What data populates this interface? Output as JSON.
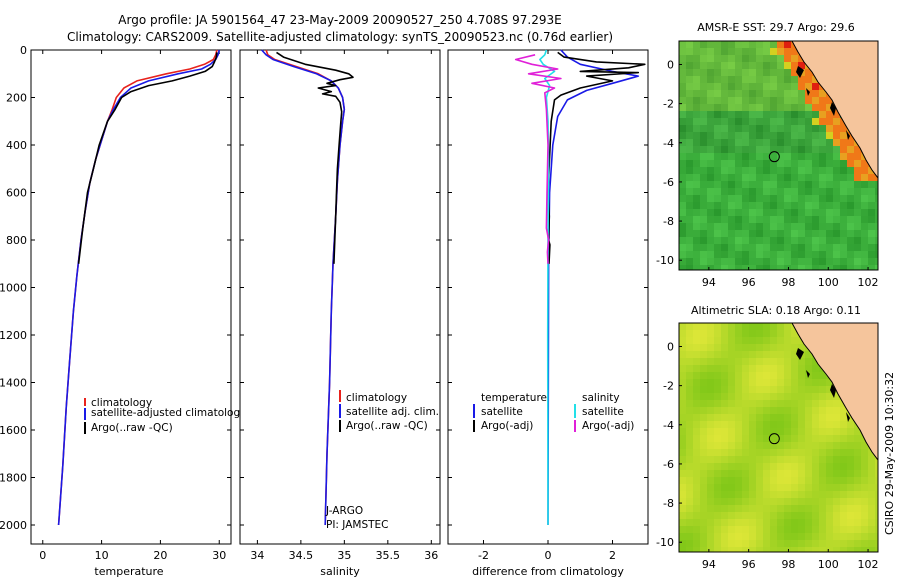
{
  "header": {
    "line1": "Argo profile: JA 5901564_47 23-May-2009 20090527_250 4.708S 97.293E",
    "line2": "Climatology: CARS2009. Satellite-adjusted climatology: synTS_20090523.nc (0.76d earlier)"
  },
  "side_stamp": "CSIRO 29-May-2009 10:30:32",
  "colors": {
    "red": "#e8221c",
    "blue": "#1a1ae6",
    "black": "#000000",
    "cyan": "#22e0e8",
    "magenta": "#e020d8"
  },
  "chart_data": [
    {
      "type": "line",
      "name": "temperature",
      "xlabel": "temperature",
      "ylabel": "",
      "xlim": [
        -2,
        32
      ],
      "ylim": [
        2080,
        0
      ],
      "xticks": [
        "0",
        "10",
        "20",
        "30"
      ],
      "xtick_values": [
        0,
        10,
        20,
        30
      ],
      "yticks": [
        "0",
        "200",
        "400",
        "600",
        "800",
        "1000",
        "1200",
        "1400",
        "1600",
        "1800",
        "2000"
      ],
      "ytick_values": [
        0,
        200,
        400,
        600,
        800,
        1000,
        1200,
        1400,
        1600,
        1800,
        2000
      ],
      "legend": [
        "climatology",
        "satellite-adjusted climatology",
        "Argo(..raw -QC)"
      ],
      "series": [
        {
          "name": "climatology",
          "color": "red",
          "points": [
            [
              29.6,
              0
            ],
            [
              29.4,
              20
            ],
            [
              29,
              40
            ],
            [
              27.5,
              60
            ],
            [
              25,
              80
            ],
            [
              21,
              100
            ],
            [
              16,
              130
            ],
            [
              13.8,
              160
            ],
            [
              12.5,
              200
            ],
            [
              11.8,
              250
            ],
            [
              11,
              300
            ],
            [
              10,
              380
            ],
            [
              9,
              460
            ],
            [
              8,
              560
            ],
            [
              7.2,
              680
            ],
            [
              6.5,
              800
            ],
            [
              5.8,
              950
            ],
            [
              5.2,
              1100
            ],
            [
              4.6,
              1300
            ],
            [
              4,
              1500
            ],
            [
              3.4,
              1750
            ],
            [
              2.7,
              2000
            ]
          ]
        },
        {
          "name": "satellite-adjusted climatology",
          "color": "blue",
          "points": [
            [
              30,
              0
            ],
            [
              29.8,
              20
            ],
            [
              29.4,
              40
            ],
            [
              28.5,
              60
            ],
            [
              27,
              80
            ],
            [
              23,
              100
            ],
            [
              18,
              130
            ],
            [
              15,
              160
            ],
            [
              13.2,
              200
            ],
            [
              12,
              250
            ],
            [
              11,
              300
            ],
            [
              10,
              380
            ],
            [
              9,
              460
            ],
            [
              8,
              560
            ],
            [
              7.2,
              680
            ],
            [
              6.5,
              800
            ],
            [
              5.8,
              950
            ],
            [
              5.2,
              1100
            ],
            [
              4.6,
              1300
            ],
            [
              4,
              1500
            ],
            [
              3.4,
              1750
            ],
            [
              2.7,
              2000
            ]
          ]
        },
        {
          "name": "Argo(..raw -QC)",
          "color": "black",
          "points": [
            [
              29.6,
              10
            ],
            [
              29.5,
              30
            ],
            [
              29.2,
              50
            ],
            [
              28.8,
              70
            ],
            [
              27.6,
              90
            ],
            [
              25,
              110
            ],
            [
              22,
              130
            ],
            [
              18,
              150
            ],
            [
              15,
              175
            ],
            [
              13.4,
              200
            ],
            [
              12.3,
              250
            ],
            [
              11,
              300
            ],
            [
              9.6,
              400
            ],
            [
              8.6,
              500
            ],
            [
              7.6,
              600
            ],
            [
              6.8,
              750
            ],
            [
              6.1,
              900
            ]
          ]
        }
      ]
    },
    {
      "type": "line",
      "name": "salinity",
      "xlabel": "salinity",
      "xlim": [
        33.8,
        36.1
      ],
      "ylim": [
        2080,
        0
      ],
      "xticks": [
        "34",
        "34.5",
        "35",
        "35.5",
        "36"
      ],
      "xtick_values": [
        34,
        34.5,
        35,
        35.5,
        36
      ],
      "legend": [
        "climatology",
        "satellite adj. clim.",
        "Argo(..raw -QC)"
      ],
      "annotation": [
        "J-ARGO",
        "PI: JAMSTEC"
      ],
      "series": [
        {
          "name": "climatology",
          "color": "red",
          "points": [
            [
              34.1,
              0
            ],
            [
              34.12,
              20
            ],
            [
              34.2,
              40
            ],
            [
              34.45,
              70
            ],
            [
              34.7,
              100
            ],
            [
              34.85,
              130
            ],
            [
              34.93,
              160
            ],
            [
              34.98,
              200
            ],
            [
              35.0,
              250
            ],
            [
              34.98,
              300
            ],
            [
              34.95,
              400
            ],
            [
              34.92,
              550
            ],
            [
              34.9,
              700
            ],
            [
              34.87,
              900
            ],
            [
              34.85,
              1100
            ],
            [
              34.83,
              1400
            ],
            [
              34.8,
              1700
            ],
            [
              34.78,
              2000
            ]
          ]
        },
        {
          "name": "satellite adj. clim.",
          "color": "blue",
          "points": [
            [
              34.05,
              0
            ],
            [
              34.1,
              20
            ],
            [
              34.18,
              40
            ],
            [
              34.42,
              70
            ],
            [
              34.68,
              100
            ],
            [
              34.85,
              130
            ],
            [
              34.93,
              160
            ],
            [
              34.98,
              200
            ],
            [
              35.0,
              250
            ],
            [
              34.98,
              300
            ],
            [
              34.95,
              400
            ],
            [
              34.92,
              550
            ],
            [
              34.9,
              700
            ],
            [
              34.87,
              900
            ],
            [
              34.85,
              1100
            ],
            [
              34.83,
              1400
            ],
            [
              34.8,
              1700
            ],
            [
              34.78,
              2000
            ]
          ]
        },
        {
          "name": "Argo(..raw -QC)",
          "color": "black",
          "points": [
            [
              34.22,
              10
            ],
            [
              34.3,
              30
            ],
            [
              34.55,
              60
            ],
            [
              34.9,
              85
            ],
            [
              35.05,
              100
            ],
            [
              35.1,
              115
            ],
            [
              34.95,
              125
            ],
            [
              34.8,
              140
            ],
            [
              34.9,
              150
            ],
            [
              34.7,
              160
            ],
            [
              34.85,
              175
            ],
            [
              34.75,
              185
            ],
            [
              34.9,
              195
            ],
            [
              34.95,
              220
            ],
            [
              34.97,
              260
            ],
            [
              34.96,
              300
            ],
            [
              34.94,
              400
            ],
            [
              34.92,
              500
            ],
            [
              34.91,
              600
            ],
            [
              34.9,
              700
            ],
            [
              34.89,
              800
            ],
            [
              34.88,
              900
            ]
          ]
        }
      ]
    },
    {
      "type": "line",
      "name": "difference",
      "xlabel": "difference from climatology",
      "xlim": [
        -3.1,
        3.1
      ],
      "ylim": [
        2080,
        0
      ],
      "xticks": [
        "-2",
        "0",
        "2"
      ],
      "xtick_values": [
        -2,
        0,
        2
      ],
      "legend_left_title": "temperature",
      "legend_right_title": "salinity",
      "legend_left": [
        "satellite",
        "Argo(-adj)"
      ],
      "legend_right": [
        "satellite",
        "Argo(-adj)"
      ],
      "series": [
        {
          "name": "temperature satellite",
          "color": "blue",
          "points": [
            [
              0.4,
              0
            ],
            [
              0.6,
              30
            ],
            [
              1,
              60
            ],
            [
              2,
              90
            ],
            [
              2.8,
              110
            ],
            [
              2,
              140
            ],
            [
              1.2,
              170
            ],
            [
              0.6,
              210
            ],
            [
              0.3,
              280
            ],
            [
              0.15,
              400
            ],
            [
              0.05,
              600
            ],
            [
              0.02,
              900
            ],
            [
              0,
              2000
            ]
          ]
        },
        {
          "name": "temperature Argo(-adj)",
          "color": "black",
          "points": [
            [
              0.3,
              10
            ],
            [
              0.5,
              30
            ],
            [
              1.5,
              50
            ],
            [
              3,
              60
            ],
            [
              2.5,
              75
            ],
            [
              1,
              90
            ],
            [
              2.8,
              95
            ],
            [
              1.2,
              110
            ],
            [
              2,
              130
            ],
            [
              1,
              160
            ],
            [
              0.4,
              190
            ],
            [
              0.2,
              210
            ],
            [
              0.1,
              300
            ],
            [
              0.05,
              450
            ],
            [
              0,
              600
            ],
            [
              0.04,
              700
            ],
            [
              0.02,
              800
            ],
            [
              0.06,
              820
            ],
            [
              0.03,
              900
            ]
          ]
        },
        {
          "name": "salinity satellite",
          "color": "cyan",
          "points": [
            [
              -0.05,
              0
            ],
            [
              -0.1,
              20
            ],
            [
              -0.25,
              40
            ],
            [
              -0.15,
              60
            ],
            [
              0.2,
              90
            ],
            [
              -0.1,
              120
            ],
            [
              0.05,
              150
            ],
            [
              -0.05,
              200
            ],
            [
              0,
              300
            ],
            [
              0.02,
              500
            ],
            [
              0,
              800
            ],
            [
              -0.01,
              1200
            ],
            [
              0,
              2000
            ]
          ]
        },
        {
          "name": "salinity Argo(-adj)",
          "color": "magenta",
          "points": [
            [
              -0.4,
              20
            ],
            [
              -1,
              40
            ],
            [
              -0.5,
              60
            ],
            [
              0.3,
              80
            ],
            [
              -0.6,
              100
            ],
            [
              0.4,
              120
            ],
            [
              -0.5,
              140
            ],
            [
              0.2,
              160
            ],
            [
              -0.1,
              180
            ],
            [
              -0.05,
              250
            ],
            [
              0,
              400
            ],
            [
              -0.03,
              600
            ],
            [
              -0.05,
              750
            ],
            [
              0.02,
              800
            ],
            [
              -0.02,
              850
            ],
            [
              0,
              900
            ]
          ]
        }
      ]
    },
    {
      "type": "heatmap",
      "name": "sst-map",
      "title": "AMSR-E SST: 29.7 Argo: 29.6",
      "xlim": [
        92.5,
        102.5
      ],
      "ylim": [
        -10.5,
        1.2
      ],
      "xticks": [
        "94",
        "96",
        "98",
        "100",
        "102"
      ],
      "xtick_values": [
        94,
        96,
        98,
        100,
        102
      ],
      "yticks": [
        "0",
        "-2",
        "-4",
        "-6",
        "-8",
        "-10"
      ],
      "ytick_values": [
        0,
        -2,
        -4,
        -6,
        -8,
        -10
      ],
      "marker": [
        97.29,
        -4.71
      ]
    },
    {
      "type": "heatmap",
      "name": "sla-map",
      "title": "Altimetric SLA: 0.18 Argo: 0.11",
      "xlim": [
        92.5,
        102.5
      ],
      "ylim": [
        -10.5,
        1.2
      ],
      "xticks": [
        "94",
        "96",
        "98",
        "100",
        "102"
      ],
      "xtick_values": [
        94,
        96,
        98,
        100,
        102
      ],
      "yticks": [
        "0",
        "-2",
        "-4",
        "-6",
        "-8",
        "-10"
      ],
      "ytick_values": [
        0,
        -2,
        -4,
        -6,
        -8,
        -10
      ],
      "marker": [
        97.29,
        -4.71
      ]
    }
  ]
}
